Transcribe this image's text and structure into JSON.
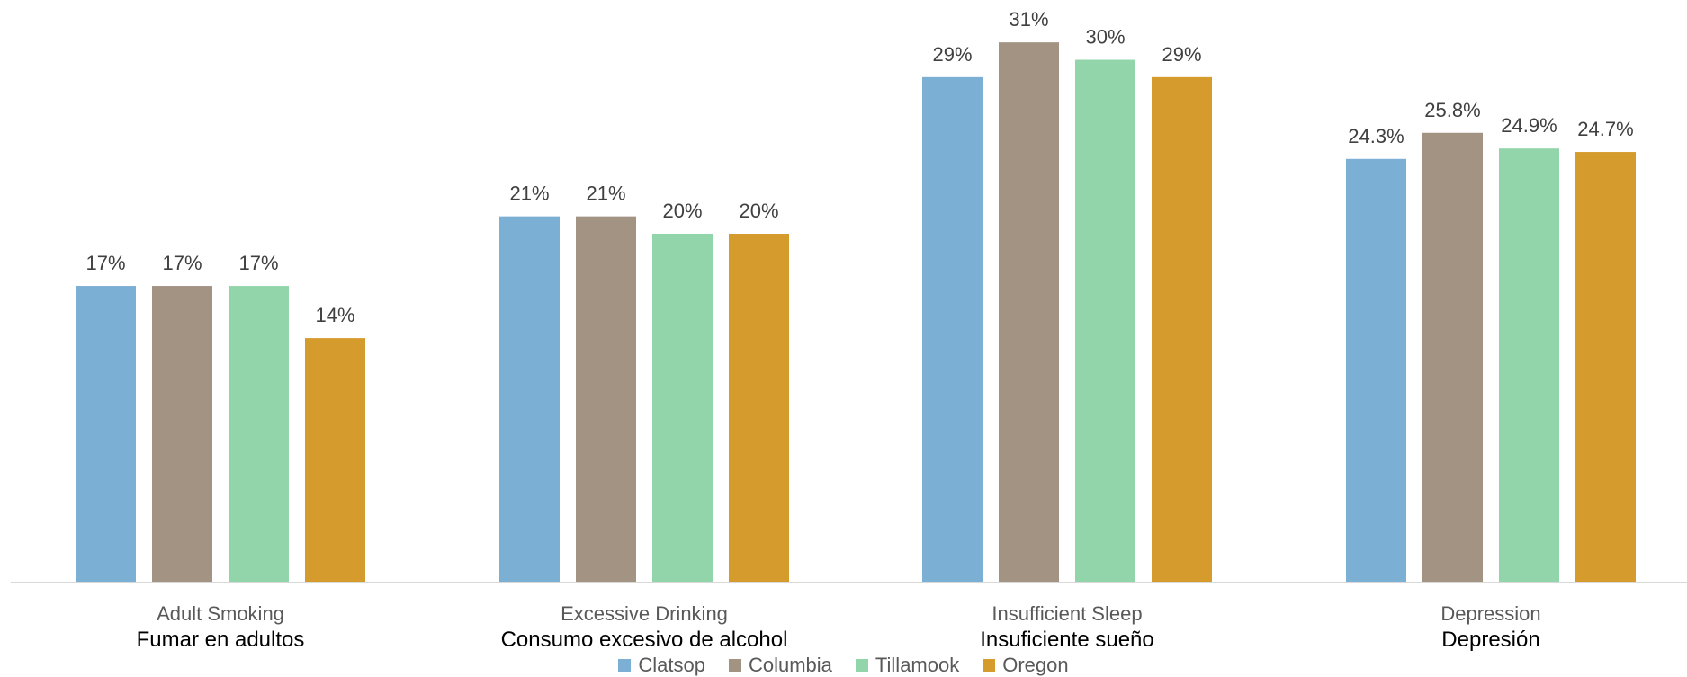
{
  "chart_data": {
    "type": "bar",
    "categories": [
      "Adult Smoking",
      "Excessive Drinking",
      "Insufficient Sleep",
      "Depression"
    ],
    "categories_es": [
      "Fumar en adultos",
      "Consumo excesivo de alcohol",
      "Insuficiente sueño",
      "Depresión"
    ],
    "series": [
      {
        "name": "Clatsop",
        "color": "#7BAFD4",
        "values": [
          17,
          21,
          29,
          24.3
        ],
        "labels": [
          "17%",
          "21%",
          "29%",
          "24.3%"
        ]
      },
      {
        "name": "Columbia",
        "color": "#A39383",
        "values": [
          17,
          21,
          31,
          25.8
        ],
        "labels": [
          "17%",
          "21%",
          "31%",
          "25.8%"
        ]
      },
      {
        "name": "Tillamook",
        "color": "#93D5AA",
        "values": [
          17,
          20,
          30,
          24.9
        ],
        "labels": [
          "17%",
          "20%",
          "30%",
          "24.9%"
        ]
      },
      {
        "name": "Oregon",
        "color": "#D69B2D",
        "values": [
          14,
          20,
          29,
          24.7
        ],
        "labels": [
          "14%",
          "20%",
          "29%",
          "24.7%"
        ]
      }
    ],
    "ylim": [
      0,
      32
    ],
    "grid": false,
    "legend_position": "bottom",
    "title": "",
    "xlabel": "",
    "ylabel": ""
  },
  "legend": {
    "items": [
      {
        "label": "Clatsop",
        "color": "#7BAFD4"
      },
      {
        "label": "Columbia",
        "color": "#A39383"
      },
      {
        "label": "Tillamook",
        "color": "#93D5AA"
      },
      {
        "label": "Oregon",
        "color": "#D69B2D"
      }
    ]
  },
  "colors": {
    "axis": "#D9D9D9",
    "category_label": "#595959",
    "spanish_label": "#000000",
    "data_label": "#404040"
  }
}
